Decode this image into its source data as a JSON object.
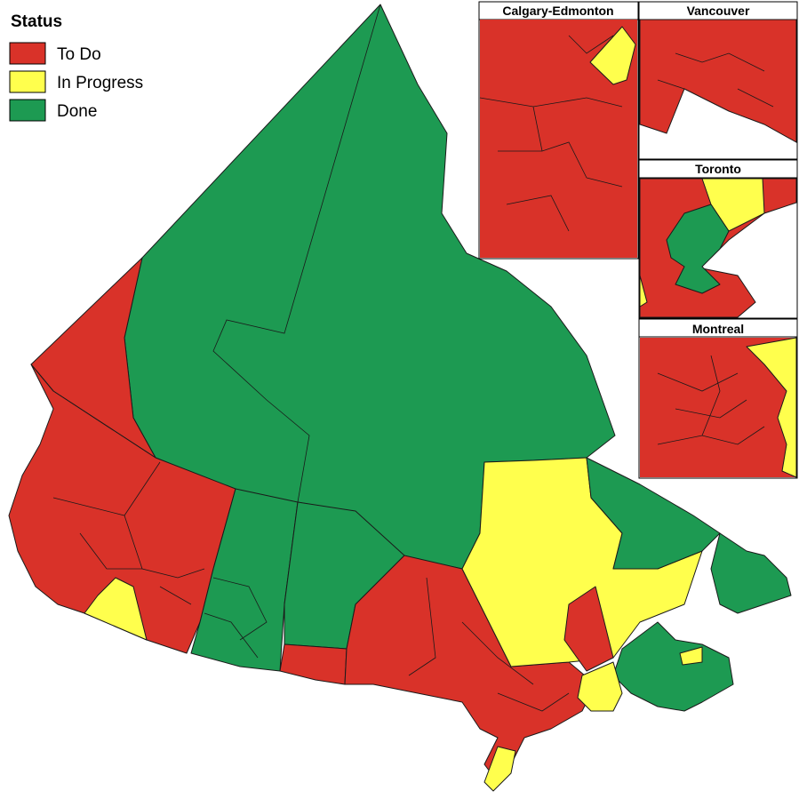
{
  "legend": {
    "title": "Status",
    "items": [
      {
        "label": "To Do",
        "color": "#d93229"
      },
      {
        "label": "In Progress",
        "color": "#ffff4d"
      },
      {
        "label": "Done",
        "color": "#1d9a52"
      }
    ]
  },
  "insets": [
    {
      "title": "Calgary-Edmonton"
    },
    {
      "title": "Vancouver"
    },
    {
      "title": "Toronto"
    },
    {
      "title": "Montreal"
    }
  ]
}
